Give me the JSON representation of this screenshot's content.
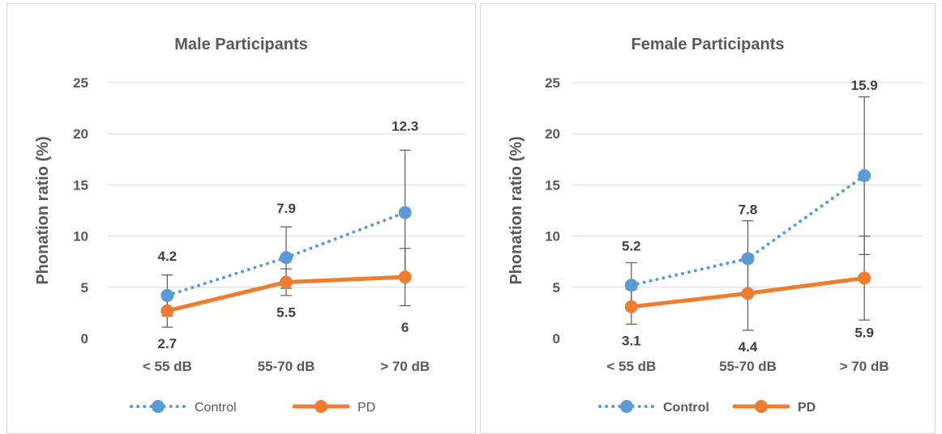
{
  "chart_data": [
    {
      "type": "line",
      "title": "Male Participants",
      "xlabel": "",
      "ylabel": "Phonation ratio (%)",
      "categories": [
        "< 55 dB",
        "55-70 dB",
        "> 70 dB"
      ],
      "ylim": [
        0,
        25
      ],
      "yticks": [
        "0",
        "5",
        "10",
        "15",
        "20",
        "25"
      ],
      "grid": true,
      "legend_position": "bottom",
      "legend_bold": false,
      "series": [
        {
          "name": "Control",
          "values": [
            4.2,
            7.9,
            12.3
          ],
          "labels": [
            "4.2",
            "7.9",
            "12.3"
          ],
          "error_low": [
            2.2,
            4.9,
            6.2
          ],
          "error_high": [
            6.2,
            10.9,
            18.4
          ],
          "color": "#5B9BD5",
          "style": "dotted"
        },
        {
          "name": "PD",
          "values": [
            2.7,
            5.5,
            6
          ],
          "labels": [
            "2.7",
            "5.5",
            "6"
          ],
          "error_low": [
            1.1,
            4.2,
            3.2
          ],
          "error_high": [
            4.3,
            6.8,
            8.8
          ],
          "color": "#ED7D31",
          "style": "solid"
        }
      ]
    },
    {
      "type": "line",
      "title": "Female Participants",
      "xlabel": "",
      "ylabel": "Phonation ratio (%)",
      "categories": [
        "< 55 dB",
        "55-70 dB",
        "> 70 dB"
      ],
      "ylim": [
        0,
        25
      ],
      "yticks": [
        "0",
        "5",
        "10",
        "15",
        "20",
        "25"
      ],
      "grid": true,
      "legend_position": "bottom",
      "legend_bold": true,
      "series": [
        {
          "name": "Control",
          "values": [
            5.2,
            7.8,
            15.9
          ],
          "labels": [
            "5.2",
            "7.8",
            "15.9"
          ],
          "error_low": [
            3,
            4.1,
            8.2
          ],
          "error_high": [
            7.4,
            11.5,
            23.6
          ],
          "color": "#5B9BD5",
          "style": "dotted"
        },
        {
          "name": "PD",
          "values": [
            3.1,
            4.4,
            5.9
          ],
          "labels": [
            "3.1",
            "4.4",
            "5.9"
          ],
          "error_low": [
            1.4,
            0.8,
            1.8
          ],
          "error_high": [
            4.8,
            8,
            10
          ],
          "color": "#ED7D31",
          "style": "solid"
        }
      ]
    }
  ]
}
